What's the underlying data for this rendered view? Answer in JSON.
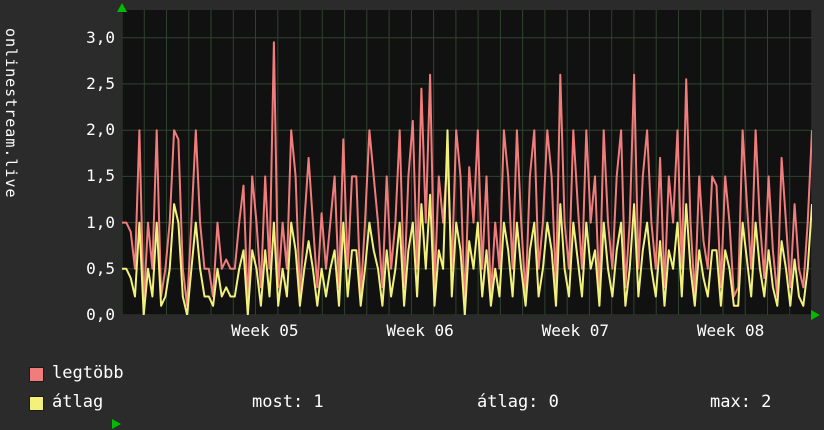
{
  "colors": {
    "background": "#2b2b2b",
    "plot_background": "#111111",
    "grid": "#2e432e",
    "text": "#ffffff",
    "arrow": "#00bb00",
    "series_most": "#f17c7c",
    "series_avg": "#f1f17c"
  },
  "legend": {
    "items": [
      {
        "label": "legtöbb",
        "color": "#f17c7c"
      },
      {
        "label": "átlag",
        "color": "#f1f17c"
      }
    ]
  },
  "stats": {
    "most": "most: 1",
    "atlag": "átlag: 0",
    "max": "max: 2"
  },
  "chart_data": {
    "type": "line",
    "title": "",
    "ylabel": "onlinestream.live",
    "xlabel": "",
    "ylim": [
      0,
      3.3
    ],
    "grid": {
      "vertical_divisions": 31,
      "horizontal_step": 0.5
    },
    "y_ticks": [
      {
        "label": "0,0",
        "value": 0
      },
      {
        "label": "0,5",
        "value": 0.5
      },
      {
        "label": "1,0",
        "value": 1
      },
      {
        "label": "1,5",
        "value": 1.5
      },
      {
        "label": "2,0",
        "value": 2
      },
      {
        "label": "2,5",
        "value": 2.5
      },
      {
        "label": "3,0",
        "value": 3
      }
    ],
    "x_ticks": [
      {
        "label": "Week 05",
        "pos": 0.207
      },
      {
        "label": "Week 06",
        "pos": 0.432
      },
      {
        "label": "Week 07",
        "pos": 0.657
      },
      {
        "label": "Week 08",
        "pos": 0.882
      }
    ],
    "series": [
      {
        "name": "legtöbb",
        "color": "#f17c7c",
        "values": [
          1.0,
          1.0,
          0.9,
          0.5,
          2.0,
          0.1,
          1.0,
          0.5,
          2.0,
          0.2,
          0.5,
          1.0,
          2.0,
          1.9,
          0.5,
          0.1,
          1.0,
          2.0,
          1.0,
          0.5,
          0.5,
          0.2,
          1.0,
          0.5,
          0.6,
          0.5,
          0.5,
          1.0,
          1.4,
          0.1,
          1.5,
          1.0,
          0.3,
          1.5,
          0.5,
          2.95,
          0.3,
          1.0,
          0.5,
          2.0,
          1.5,
          0.2,
          1.0,
          1.7,
          1.0,
          0.3,
          1.1,
          0.5,
          1.0,
          1.5,
          0.3,
          1.9,
          0.5,
          1.5,
          1.5,
          0.2,
          1.0,
          2.0,
          1.5,
          1.0,
          0.3,
          1.5,
          0.5,
          1.0,
          2.0,
          0.3,
          1.5,
          2.1,
          0.5,
          2.45,
          1.0,
          2.6,
          0.3,
          1.5,
          1.0,
          1.7,
          0.5,
          2.0,
          1.5,
          0.1,
          1.6,
          1.0,
          2.0,
          0.5,
          1.5,
          0.2,
          1.0,
          0.5,
          2.0,
          1.5,
          0.5,
          2.0,
          1.0,
          0.2,
          1.5,
          2.0,
          0.5,
          1.0,
          2.0,
          1.5,
          0.3,
          2.6,
          1.0,
          0.5,
          2.0,
          1.2,
          0.5,
          2.0,
          1.0,
          1.5,
          0.2,
          2.0,
          1.0,
          0.5,
          1.5,
          2.0,
          0.3,
          1.0,
          2.6,
          0.5,
          1.5,
          2.0,
          1.0,
          0.5,
          1.7,
          0.3,
          1.5,
          1.0,
          2.0,
          0.5,
          2.55,
          1.0,
          0.2,
          1.5,
          0.8,
          0.5,
          1.5,
          1.4,
          0.3,
          1.5,
          1.0,
          0.2,
          0.3,
          2.0,
          1.2,
          0.5,
          2.0,
          1.0,
          0.4,
          1.5,
          0.7,
          0.2,
          1.7,
          1.0,
          0.3,
          1.2,
          0.5,
          0.3,
          1.0,
          2.0
        ]
      },
      {
        "name": "átlag",
        "color": "#f1f17c",
        "values": [
          0.5,
          0.5,
          0.4,
          0.2,
          1.0,
          0.0,
          0.5,
          0.2,
          1.0,
          0.1,
          0.2,
          0.5,
          1.2,
          1.0,
          0.2,
          0.0,
          0.5,
          1.0,
          0.5,
          0.2,
          0.2,
          0.1,
          0.5,
          0.2,
          0.3,
          0.2,
          0.2,
          0.5,
          0.7,
          0.0,
          0.7,
          0.5,
          0.1,
          0.7,
          0.2,
          1.0,
          0.1,
          0.5,
          0.2,
          1.0,
          0.7,
          0.1,
          0.5,
          0.8,
          0.5,
          0.1,
          0.5,
          0.2,
          0.5,
          0.7,
          0.1,
          1.0,
          0.2,
          0.7,
          0.7,
          0.1,
          0.5,
          1.0,
          0.7,
          0.5,
          0.1,
          0.7,
          0.2,
          0.5,
          1.0,
          0.1,
          0.7,
          1.0,
          0.2,
          1.2,
          0.5,
          1.3,
          0.1,
          0.7,
          0.5,
          2.0,
          0.2,
          1.0,
          0.7,
          0.0,
          0.8,
          0.5,
          1.0,
          0.2,
          0.7,
          0.1,
          0.5,
          0.2,
          1.0,
          0.7,
          0.2,
          1.0,
          0.5,
          0.1,
          0.7,
          1.0,
          0.2,
          0.5,
          1.0,
          0.7,
          0.1,
          1.2,
          0.5,
          0.2,
          1.0,
          0.6,
          0.2,
          1.0,
          0.5,
          0.7,
          0.1,
          1.0,
          0.5,
          0.2,
          0.7,
          1.0,
          0.1,
          0.5,
          1.2,
          0.2,
          0.7,
          1.0,
          0.5,
          0.2,
          0.8,
          0.1,
          0.7,
          0.5,
          1.0,
          0.2,
          1.2,
          0.5,
          0.1,
          0.7,
          0.4,
          0.2,
          0.7,
          0.7,
          0.1,
          0.7,
          0.5,
          0.1,
          0.1,
          1.0,
          0.6,
          0.2,
          1.0,
          0.5,
          0.2,
          0.7,
          0.3,
          0.1,
          0.8,
          0.5,
          0.1,
          0.6,
          0.2,
          0.1,
          0.5,
          1.2
        ]
      }
    ]
  }
}
